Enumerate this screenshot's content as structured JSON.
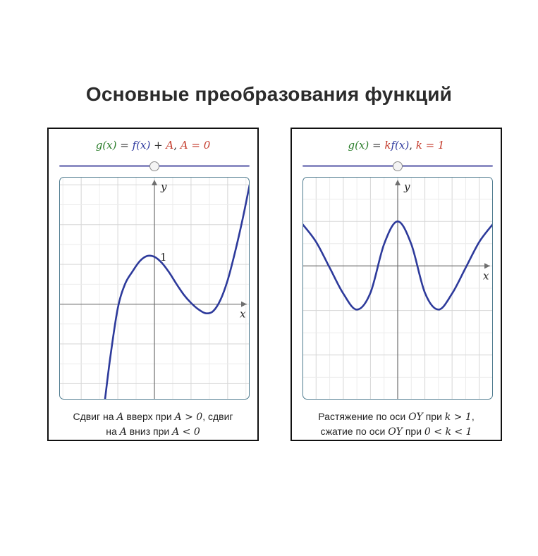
{
  "page": {
    "title": "Основные преобразования функций"
  },
  "panels": [
    {
      "formula": {
        "lhs": "g(x)",
        "eq": " = ",
        "fx": "f(x)",
        "op": " + ",
        "param_sym": "A",
        "sep": ",   ",
        "param_value": "A = 0"
      },
      "slider": {
        "value": 0,
        "min": -5,
        "max": 5
      },
      "graph": {
        "axis_x_label": "x",
        "axis_y_label": "y",
        "tick_label_y": "1",
        "xlim": [
          -2.6,
          2.6
        ],
        "ylim": [
          -2.4,
          3.2
        ],
        "curve_color": "#2d3a9b"
      },
      "caption": {
        "line1_a": "Сдвиг на ",
        "line1_math1": "A",
        "line1_b": " вверх при ",
        "line1_math2": "A > 0",
        "line1_c": ", сдвиг",
        "line2_a": "на ",
        "line2_math1": "A",
        "line2_b": " вниз при ",
        "line2_math2": "A < 0"
      }
    },
    {
      "formula": {
        "lhs": "g(x)",
        "eq": " = ",
        "coef": "k",
        "fx": "f(x)",
        "sep": ",   ",
        "param_value": "k = 1"
      },
      "slider": {
        "value": 1,
        "min": -3,
        "max": 5
      },
      "graph": {
        "axis_x_label": "x",
        "axis_y_label": "y",
        "xlim": [
          -3.5,
          3.5
        ],
        "ylim": [
          -3.0,
          2.0
        ],
        "curve_color": "#2d3a9b"
      },
      "caption": {
        "line1_a": "Растяжение по оси ",
        "line1_math1": "OY",
        "line1_b": " при  ",
        "line1_math2": "k > 1",
        "line1_c": ",",
        "line2_a": "сжатие по оси ",
        "line2_math1": "OY",
        "line2_b": " при  ",
        "line2_math2": "0 < k < 1"
      }
    }
  ],
  "chart_data": [
    {
      "type": "line",
      "title": "",
      "xlabel": "x",
      "ylabel": "y",
      "xlim": [
        -2.6,
        2.6
      ],
      "ylim": [
        -2.4,
        3.2
      ],
      "grid": true,
      "series": [
        {
          "x": [
            -1.35,
            -1.2,
            -1.0,
            -0.8,
            -0.6,
            -0.4,
            -0.2,
            0.0,
            0.2,
            0.4,
            0.6,
            0.8,
            1.0,
            1.2,
            1.4,
            1.6,
            1.8,
            2.0,
            2.2,
            2.4,
            2.6
          ],
          "y": [
            -2.4,
            -1.3,
            -0.1,
            0.51,
            0.82,
            1.08,
            1.21,
            1.19,
            1.04,
            0.8,
            0.51,
            0.24,
            0.03,
            -0.13,
            -0.23,
            -0.18,
            0.1,
            0.6,
            1.3,
            2.1,
            3.0
          ]
        }
      ]
    },
    {
      "type": "line",
      "title": "",
      "xlabel": "x",
      "ylabel": "y",
      "xlim": [
        -3.5,
        3.5
      ],
      "ylim": [
        -3.0,
        2.0
      ],
      "grid": true,
      "series": [
        {
          "x": [
            -3.5,
            -3.0,
            -2.5,
            -2.0,
            -1.5,
            -1.0,
            -0.5,
            0.0,
            0.5,
            1.0,
            1.5,
            2.0,
            2.5,
            3.0,
            3.5
          ],
          "y": [
            0.94,
            0.54,
            -0.04,
            -0.62,
            -0.98,
            -0.6,
            0.49,
            1.0,
            0.49,
            -0.6,
            -0.98,
            -0.62,
            -0.04,
            0.54,
            0.94
          ]
        }
      ]
    }
  ]
}
